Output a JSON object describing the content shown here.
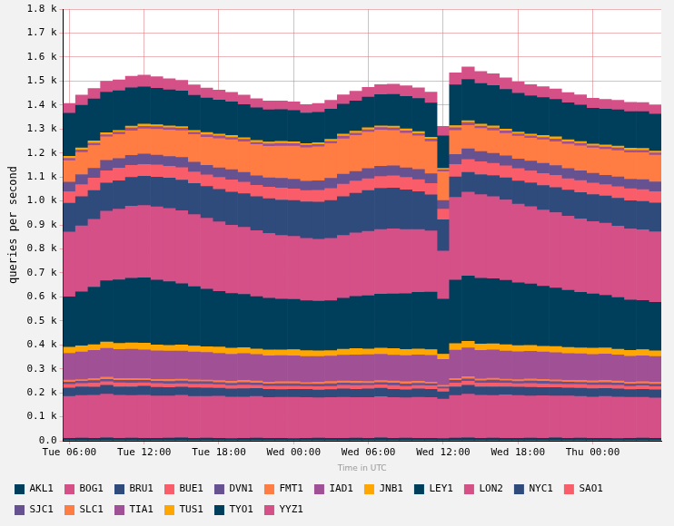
{
  "chart_data": {
    "type": "bar",
    "stacked": true,
    "grid": true,
    "legend": "bottom",
    "x_label": "Time in UTC",
    "y_label": "queries per second",
    "ylim": [
      0,
      1800
    ],
    "yticks": [
      {
        "value": 0,
        "label": "0.0"
      },
      {
        "value": 100,
        "label": "0.1 k"
      },
      {
        "value": 200,
        "label": "0.2 k"
      },
      {
        "value": 300,
        "label": "0.3 k"
      },
      {
        "value": 400,
        "label": "0.4 k"
      },
      {
        "value": 500,
        "label": "0.5 k"
      },
      {
        "value": 600,
        "label": "0.6 k"
      },
      {
        "value": 700,
        "label": "0.7 k"
      },
      {
        "value": 800,
        "label": "0.8 k"
      },
      {
        "value": 900,
        "label": "0.9 k"
      },
      {
        "value": 1000,
        "label": "1.0 k"
      },
      {
        "value": 1100,
        "label": "1.1 k"
      },
      {
        "value": 1200,
        "label": "1.2 k"
      },
      {
        "value": 1300,
        "label": "1.3 k"
      },
      {
        "value": 1400,
        "label": "1.4 k"
      },
      {
        "value": 1500,
        "label": "1.5 k"
      },
      {
        "value": 1600,
        "label": "1.6 k"
      },
      {
        "value": 1700,
        "label": "1.7 k"
      },
      {
        "value": 1800,
        "label": "1.8 k"
      }
    ],
    "categories": [
      "Tue 06:00",
      null,
      null,
      null,
      null,
      null,
      "Tue 12:00",
      null,
      null,
      null,
      null,
      null,
      "Tue 18:00",
      null,
      null,
      null,
      null,
      null,
      "Wed 00:00",
      null,
      null,
      null,
      null,
      null,
      "Wed 06:00",
      null,
      null,
      null,
      null,
      null,
      "Wed 12:00",
      null,
      null,
      null,
      null,
      null,
      "Wed 18:00",
      null,
      null,
      null,
      null,
      null,
      "Thu 00:00",
      null,
      null,
      null,
      null,
      null
    ],
    "series": [
      {
        "name": "AKL1",
        "color": "#003f5c",
        "values": [
          10,
          11,
          10,
          12,
          10,
          11,
          10,
          10,
          11,
          12,
          10,
          11,
          10,
          9,
          10,
          11,
          10,
          10,
          9,
          10,
          11,
          10,
          10,
          11,
          10,
          12,
          10,
          11,
          10,
          10,
          9,
          11,
          12,
          10,
          11,
          10,
          10,
          11,
          10,
          12,
          10,
          11,
          10,
          10,
          9,
          10,
          11,
          10
        ]
      },
      {
        "name": "BOG1",
        "color": "#d45087",
        "values": [
          175,
          178,
          180,
          182,
          180,
          178,
          180,
          177,
          176,
          178,
          175,
          174,
          176,
          173,
          172,
          174,
          170,
          171,
          172,
          170,
          168,
          170,
          171,
          169,
          170,
          172,
          170,
          168,
          171,
          170,
          165,
          178,
          182,
          180,
          178,
          181,
          179,
          176,
          178,
          175,
          177,
          174,
          172,
          175,
          173,
          171,
          170,
          168
        ]
      },
      {
        "name": "BRU1",
        "color": "#2f4b7c",
        "values": [
          35,
          36,
          34,
          37,
          35,
          36,
          38,
          36,
          35,
          34,
          36,
          35,
          33,
          34,
          35,
          33,
          34,
          32,
          33,
          34,
          32,
          33,
          35,
          34,
          36,
          35,
          34,
          33,
          35,
          34,
          30,
          36,
          37,
          35,
          36,
          34,
          35,
          36,
          34,
          35,
          33,
          34,
          35,
          33,
          34,
          32,
          33,
          34
        ]
      },
      {
        "name": "BUE1",
        "color": "#f95d6a",
        "values": [
          15,
          14,
          16,
          15,
          17,
          15,
          14,
          16,
          15,
          14,
          15,
          16,
          15,
          14,
          15,
          13,
          14,
          15,
          14,
          13,
          15,
          14,
          15,
          16,
          15,
          14,
          16,
          15,
          14,
          15,
          13,
          16,
          17,
          15,
          16,
          15,
          14,
          16,
          15,
          14,
          15,
          16,
          15,
          14,
          15,
          14,
          15,
          14
        ]
      },
      {
        "name": "DVN1",
        "color": "#665191",
        "values": [
          10,
          9,
          11,
          10,
          10,
          12,
          10,
          9,
          10,
          11,
          10,
          10,
          9,
          10,
          11,
          10,
          9,
          10,
          10,
          9,
          10,
          11,
          10,
          10,
          9,
          10,
          11,
          10,
          10,
          9,
          8,
          11,
          10,
          10,
          12,
          10,
          9,
          10,
          11,
          10,
          10,
          9,
          10,
          11,
          10,
          10,
          9,
          10
        ]
      },
      {
        "name": "FMT1",
        "color": "#ff7c43",
        "values": [
          8,
          7,
          8,
          9,
          8,
          8,
          7,
          8,
          9,
          8,
          8,
          7,
          8,
          8,
          9,
          8,
          7,
          8,
          8,
          7,
          8,
          9,
          8,
          8,
          7,
          8,
          8,
          9,
          8,
          7,
          6,
          8,
          9,
          8,
          8,
          7,
          8,
          9,
          8,
          8,
          7,
          8,
          8,
          9,
          8,
          7,
          8,
          8
        ]
      },
      {
        "name": "IAD1",
        "color": "#a05195",
        "values": [
          112,
          115,
          118,
          120,
          121,
          122,
          120,
          119,
          118,
          117,
          116,
          115,
          114,
          113,
          112,
          111,
          110,
          109,
          108,
          108,
          107,
          106,
          108,
          110,
          112,
          110,
          108,
          109,
          110,
          111,
          108,
          118,
          120,
          119,
          118,
          117,
          116,
          115,
          114,
          113,
          112,
          111,
          110,
          110,
          109,
          108,
          108,
          107
        ]
      },
      {
        "name": "JNB1",
        "color": "#ffa600",
        "values": [
          25,
          26,
          24,
          27,
          25,
          26,
          28,
          25,
          24,
          26,
          25,
          24,
          26,
          25,
          24,
          23,
          25,
          24,
          26,
          25,
          24,
          23,
          25,
          26,
          24,
          25,
          27,
          26,
          25,
          24,
          22,
          27,
          28,
          26,
          25,
          27,
          26,
          25,
          24,
          26,
          25,
          24,
          26,
          25,
          24,
          25,
          26,
          24
        ]
      },
      {
        "name": "LEY1",
        "color": "#003f5c",
        "values": [
          210,
          225,
          240,
          255,
          265,
          270,
          272,
          270,
          265,
          255,
          248,
          240,
          232,
          228,
          222,
          218,
          215,
          212,
          210,
          208,
          207,
          208,
          212,
          218,
          222,
          225,
          228,
          232,
          236,
          240,
          230,
          265,
          272,
          275,
          272,
          268,
          262,
          256,
          250,
          244,
          238,
          232,
          226,
          220,
          215,
          210,
          205,
          202
        ]
      },
      {
        "name": "LON2",
        "color": "#d45087",
        "values": [
          270,
          275,
          282,
          290,
          295,
          300,
          302,
          305,
          306,
          304,
          300,
          296,
          290,
          285,
          280,
          275,
          270,
          265,
          262,
          260,
          258,
          260,
          262,
          265,
          268,
          270,
          272,
          268,
          262,
          255,
          200,
          345,
          350,
          348,
          342,
          335,
          328,
          322,
          318,
          314,
          310,
          306,
          302,
          300,
          298,
          296,
          295,
          294
        ]
      },
      {
        "name": "NYC1",
        "color": "#2f4b7c",
        "values": [
          120,
          122,
          120,
          118,
          118,
          120,
          122,
          124,
          126,
          128,
          130,
          132,
          135,
          138,
          140,
          142,
          145,
          148,
          150,
          152,
          155,
          158,
          162,
          165,
          170,
          172,
          170,
          165,
          158,
          150,
          130,
          85,
          82,
          84,
          88,
          92,
          96,
          100,
          102,
          105,
          108,
          110,
          112,
          114,
          116,
          118,
          118,
          120
        ]
      },
      {
        "name": "SAO1",
        "color": "#f95d6a",
        "values": [
          48,
          50,
          52,
          51,
          53,
          50,
          49,
          51,
          50,
          52,
          48,
          49,
          50,
          51,
          48,
          47,
          49,
          50,
          48,
          47,
          49,
          50,
          52,
          51,
          50,
          49,
          51,
          52,
          50,
          48,
          45,
          52,
          54,
          53,
          51,
          50,
          52,
          49,
          50,
          51,
          48,
          50,
          49,
          47,
          48,
          50,
          49,
          48
        ]
      },
      {
        "name": "SJC1",
        "color": "#665191",
        "values": [
          40,
          42,
          41,
          43,
          40,
          42,
          44,
          41,
          40,
          42,
          41,
          39,
          40,
          42,
          41,
          40,
          38,
          40,
          41,
          39,
          40,
          42,
          41,
          40,
          42,
          43,
          41,
          40,
          42,
          40,
          36,
          42,
          44,
          43,
          41,
          42,
          40,
          41,
          43,
          40,
          42,
          41,
          40,
          39,
          41,
          40,
          42,
          40
        ]
      },
      {
        "name": "SLC1",
        "color": "#ff7c43",
        "values": [
          90,
          92,
          95,
          98,
          100,
          102,
          105,
          108,
          110,
          112,
          115,
          118,
          122,
          125,
          128,
          130,
          132,
          135,
          138,
          140,
          142,
          145,
          148,
          150,
          152,
          150,
          148,
          145,
          140,
          135,
          120,
          100,
          98,
          96,
          95,
          94,
          95,
          96,
          98,
          100,
          102,
          104,
          106,
          108,
          110,
          110,
          112,
          112
        ]
      },
      {
        "name": "TIA1",
        "color": "#a05195",
        "values": [
          10,
          11,
          10,
          9,
          10,
          12,
          10,
          11,
          10,
          10,
          9,
          10,
          11,
          10,
          10,
          9,
          10,
          11,
          10,
          10,
          9,
          10,
          11,
          10,
          10,
          11,
          10,
          9,
          10,
          10,
          8,
          11,
          12,
          10,
          11,
          10,
          10,
          9,
          10,
          11,
          10,
          10,
          9,
          10,
          11,
          10,
          10,
          9
        ]
      },
      {
        "name": "TUS1",
        "color": "#ffa600",
        "values": [
          8,
          8,
          9,
          8,
          7,
          8,
          9,
          8,
          8,
          7,
          8,
          9,
          8,
          8,
          7,
          8,
          8,
          9,
          8,
          7,
          8,
          8,
          9,
          8,
          8,
          7,
          8,
          9,
          8,
          8,
          6,
          9,
          8,
          8,
          9,
          8,
          7,
          8,
          8,
          9,
          8,
          8,
          7,
          8,
          8,
          9,
          8,
          8
        ]
      },
      {
        "name": "TYO1",
        "color": "#003f5c",
        "values": [
          180,
          178,
          175,
          170,
          165,
          160,
          155,
          152,
          150,
          148,
          146,
          144,
          142,
          140,
          138,
          136,
          134,
          132,
          130,
          128,
          127,
          126,
          125,
          126,
          128,
          130,
          132,
          135,
          138,
          142,
          135,
          170,
          172,
          170,
          168,
          165,
          162,
          160,
          158,
          156,
          154,
          152,
          150,
          150,
          151,
          152,
          153,
          154
        ]
      },
      {
        "name": "YYZ1",
        "color": "#d45087",
        "values": [
          40,
          42,
          44,
          45,
          46,
          48,
          50,
          48,
          46,
          45,
          44,
          42,
          41,
          40,
          39,
          38,
          37,
          36,
          36,
          35,
          36,
          37,
          38,
          40,
          41,
          42,
          43,
          44,
          45,
          46,
          40,
          50,
          52,
          50,
          49,
          48,
          47,
          46,
          45,
          44,
          43,
          42,
          41,
          40,
          40,
          39,
          38,
          38
        ]
      }
    ]
  }
}
